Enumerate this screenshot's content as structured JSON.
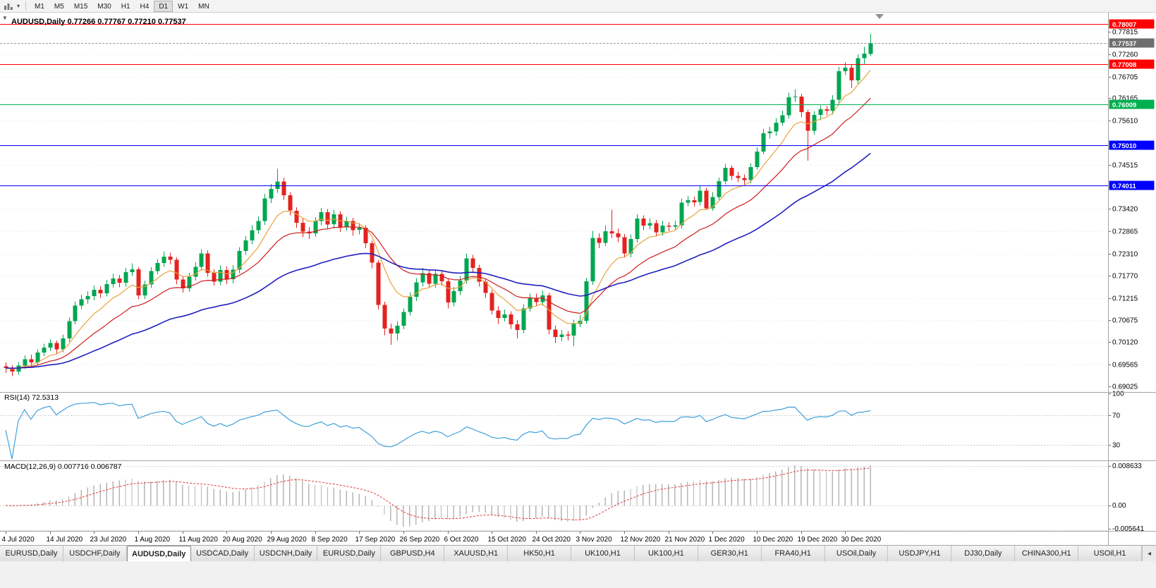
{
  "toolbar": {
    "timeframes": [
      "M1",
      "M5",
      "M15",
      "M30",
      "H1",
      "H4",
      "D1",
      "W1",
      "MN"
    ],
    "active_timeframe": "D1",
    "caret_icon": "▾"
  },
  "chart": {
    "title_symbol": "AUDUSD,Daily",
    "title_ohlc": "0.77266 0.77767 0.77210 0.77537",
    "dropdown_icon": "▼",
    "price_ticks": [
      "0.77815",
      "0.77260",
      "0.76705",
      "0.76165",
      "0.75610",
      "0.74515",
      "0.73420",
      "0.72865",
      "0.72310",
      "0.71770",
      "0.71215",
      "0.70675",
      "0.70120",
      "0.69565",
      "0.69025"
    ],
    "levels": [
      {
        "label": "0.78007",
        "value": 0.78007,
        "color": "#ff0000"
      },
      {
        "label": "0.77008",
        "value": 0.77008,
        "color": "#ff0000"
      },
      {
        "label": "0.76009",
        "value": 0.76009,
        "color": "#00b050"
      },
      {
        "label": "0.75010",
        "value": 0.7501,
        "color": "#0000ff"
      },
      {
        "label": "0.74011",
        "value": 0.74011,
        "color": "#0000ff"
      }
    ],
    "bid": {
      "label": "0.77537",
      "value": 0.77537,
      "color": "#6e6e6e"
    },
    "candle_colors": {
      "bull": "#00a651",
      "bear": "#e3231f"
    }
  },
  "rsi_panel": {
    "name": "RSI(14)",
    "value": "72.5313",
    "ticks": [
      "100",
      "70",
      "30"
    ]
  },
  "macd_panel": {
    "name": "MACD(12,26,9)",
    "value": "0.007716 0.006787",
    "ticks": [
      "0.008633",
      "0.00",
      "-0.005641"
    ]
  },
  "chart_data": {
    "type": "candlestick",
    "title": "AUDUSD,Daily",
    "y_range": [
      0.68885,
      0.78287
    ],
    "x_label_every": 7,
    "x_labels": [
      "4 Jul 2020",
      "14 Jul 2020",
      "23 Jul 2020",
      "1 Aug 2020",
      "11 Aug 2020",
      "20 Aug 2020",
      "29 Aug 2020",
      "8 Sep 2020",
      "17 Sep 2020",
      "26 Sep 2020",
      "6 Oct 2020",
      "15 Oct 2020",
      "24 Oct 2020",
      "3 Nov 2020",
      "12 Nov 2020",
      "21 Nov 2020",
      "1 Dec 2020",
      "10 Dec 2020",
      "19 Dec 2020",
      "30 Dec 2020"
    ],
    "overlays": [
      {
        "name": "ma-fast",
        "type": "ema",
        "period": 8,
        "color": "#e8a33d"
      },
      {
        "name": "ma-medium",
        "type": "ema",
        "period": 18,
        "color": "#cc1d1d"
      },
      {
        "name": "ma-slow",
        "type": "ema",
        "period": 45,
        "color": "#1f1fc0"
      }
    ],
    "indicators": [
      {
        "name": "RSI",
        "params": [
          14
        ],
        "current": 72.5313,
        "levels": [
          70,
          30
        ],
        "range_ticks": [
          100,
          70,
          30
        ],
        "color": "#3fa0da"
      },
      {
        "name": "MACD",
        "params": [
          12,
          26,
          9
        ],
        "current": [
          0.007716,
          0.006787
        ],
        "ticks": [
          0.008633,
          0,
          -0.005641
        ],
        "histogram_color": "#b6b6b6",
        "signal_color": "#e03c3c"
      }
    ],
    "candles": [
      [
        0.6952,
        0.6962,
        0.6936,
        0.6948
      ],
      [
        0.6948,
        0.6955,
        0.6928,
        0.6939
      ],
      [
        0.6939,
        0.6963,
        0.6931,
        0.6954
      ],
      [
        0.6954,
        0.6979,
        0.6946,
        0.697
      ],
      [
        0.697,
        0.6981,
        0.6952,
        0.6962
      ],
      [
        0.6962,
        0.6994,
        0.6955,
        0.6986
      ],
      [
        0.6986,
        0.7008,
        0.6978,
        0.6999
      ],
      [
        0.6999,
        0.7019,
        0.699,
        0.701
      ],
      [
        0.701,
        0.7016,
        0.6982,
        0.6994
      ],
      [
        0.6994,
        0.7031,
        0.6987,
        0.7021
      ],
      [
        0.7021,
        0.7074,
        0.7013,
        0.7064
      ],
      [
        0.7064,
        0.7113,
        0.7056,
        0.7103
      ],
      [
        0.7103,
        0.713,
        0.7094,
        0.7118
      ],
      [
        0.7118,
        0.7138,
        0.7107,
        0.7126
      ],
      [
        0.7126,
        0.7152,
        0.7116,
        0.7142
      ],
      [
        0.7142,
        0.7151,
        0.7122,
        0.7133
      ],
      [
        0.7133,
        0.7166,
        0.7125,
        0.7156
      ],
      [
        0.7156,
        0.7182,
        0.7147,
        0.717
      ],
      [
        0.717,
        0.7179,
        0.7148,
        0.7159
      ],
      [
        0.7159,
        0.7196,
        0.715,
        0.7186
      ],
      [
        0.7186,
        0.7207,
        0.7176,
        0.7193
      ],
      [
        0.7193,
        0.7198,
        0.7118,
        0.7128
      ],
      [
        0.7128,
        0.7165,
        0.7119,
        0.7155
      ],
      [
        0.7155,
        0.7198,
        0.7146,
        0.7188
      ],
      [
        0.7188,
        0.7218,
        0.718,
        0.7208
      ],
      [
        0.7208,
        0.7237,
        0.7199,
        0.7224
      ],
      [
        0.7224,
        0.7234,
        0.7205,
        0.7216
      ],
      [
        0.7216,
        0.7222,
        0.7156,
        0.7167
      ],
      [
        0.7167,
        0.7176,
        0.7135,
        0.7145
      ],
      [
        0.7145,
        0.7184,
        0.7137,
        0.7174
      ],
      [
        0.7174,
        0.721,
        0.7165,
        0.7199
      ],
      [
        0.7199,
        0.7242,
        0.719,
        0.7232
      ],
      [
        0.7232,
        0.724,
        0.7174,
        0.7184
      ],
      [
        0.7184,
        0.7193,
        0.7152,
        0.7162
      ],
      [
        0.7162,
        0.7202,
        0.7153,
        0.7191
      ],
      [
        0.7191,
        0.72,
        0.7156,
        0.7168
      ],
      [
        0.7168,
        0.7203,
        0.7158,
        0.7192
      ],
      [
        0.7192,
        0.7248,
        0.7183,
        0.7238
      ],
      [
        0.7238,
        0.7275,
        0.7228,
        0.7264
      ],
      [
        0.7264,
        0.7302,
        0.7255,
        0.729
      ],
      [
        0.729,
        0.7324,
        0.7281,
        0.7312
      ],
      [
        0.7312,
        0.738,
        0.7303,
        0.7368
      ],
      [
        0.7368,
        0.7404,
        0.7357,
        0.7392
      ],
      [
        0.7392,
        0.7442,
        0.7382,
        0.741
      ],
      [
        0.741,
        0.742,
        0.7365,
        0.7376
      ],
      [
        0.7376,
        0.7384,
        0.7326,
        0.7338
      ],
      [
        0.7338,
        0.7346,
        0.7296,
        0.7308
      ],
      [
        0.7308,
        0.7318,
        0.7272,
        0.7286
      ],
      [
        0.7286,
        0.7297,
        0.7268,
        0.7282
      ],
      [
        0.7282,
        0.7322,
        0.7273,
        0.7312
      ],
      [
        0.7312,
        0.7345,
        0.7302,
        0.7334
      ],
      [
        0.7334,
        0.7342,
        0.7292,
        0.7304
      ],
      [
        0.7304,
        0.734,
        0.7294,
        0.7329
      ],
      [
        0.7329,
        0.7337,
        0.7285,
        0.7297
      ],
      [
        0.7297,
        0.7323,
        0.7288,
        0.7312
      ],
      [
        0.7312,
        0.732,
        0.7276,
        0.729
      ],
      [
        0.729,
        0.7307,
        0.7279,
        0.7296
      ],
      [
        0.7296,
        0.7302,
        0.7245,
        0.7257
      ],
      [
        0.7257,
        0.7263,
        0.7195,
        0.7209
      ],
      [
        0.7209,
        0.7215,
        0.7093,
        0.7104
      ],
      [
        0.7104,
        0.7112,
        0.7029,
        0.7046
      ],
      [
        0.7046,
        0.7058,
        0.7006,
        0.7034
      ],
      [
        0.7034,
        0.7064,
        0.7016,
        0.7053
      ],
      [
        0.7053,
        0.7096,
        0.7044,
        0.7087
      ],
      [
        0.7087,
        0.7136,
        0.7078,
        0.7124
      ],
      [
        0.7124,
        0.7171,
        0.7114,
        0.716
      ],
      [
        0.716,
        0.7196,
        0.715,
        0.7183
      ],
      [
        0.7183,
        0.7191,
        0.7146,
        0.7157
      ],
      [
        0.7157,
        0.7192,
        0.7147,
        0.7181
      ],
      [
        0.7181,
        0.719,
        0.7152,
        0.7163
      ],
      [
        0.7163,
        0.7169,
        0.7096,
        0.711
      ],
      [
        0.711,
        0.7149,
        0.7101,
        0.7138
      ],
      [
        0.7138,
        0.7176,
        0.7129,
        0.7165
      ],
      [
        0.7165,
        0.7232,
        0.7157,
        0.722
      ],
      [
        0.722,
        0.7228,
        0.7184,
        0.7196
      ],
      [
        0.7196,
        0.7204,
        0.715,
        0.7162
      ],
      [
        0.7162,
        0.717,
        0.7122,
        0.7134
      ],
      [
        0.7134,
        0.7141,
        0.7081,
        0.709
      ],
      [
        0.709,
        0.7101,
        0.7057,
        0.7072
      ],
      [
        0.7072,
        0.7093,
        0.7063,
        0.7081
      ],
      [
        0.7081,
        0.7089,
        0.7045,
        0.7056
      ],
      [
        0.7056,
        0.7067,
        0.7021,
        0.7042
      ],
      [
        0.7042,
        0.7106,
        0.7034,
        0.7096
      ],
      [
        0.7096,
        0.7132,
        0.7088,
        0.7122
      ],
      [
        0.7122,
        0.7132,
        0.7101,
        0.7111
      ],
      [
        0.7111,
        0.714,
        0.7103,
        0.7128
      ],
      [
        0.7128,
        0.7134,
        0.7032,
        0.7043
      ],
      [
        0.7043,
        0.7054,
        0.701,
        0.7025
      ],
      [
        0.7025,
        0.7042,
        0.7014,
        0.7031
      ],
      [
        0.7031,
        0.704,
        0.7016,
        0.7028
      ],
      [
        0.7028,
        0.7068,
        0.7002,
        0.7057
      ],
      [
        0.7057,
        0.7079,
        0.7049,
        0.7065
      ],
      [
        0.7065,
        0.7172,
        0.7058,
        0.7163
      ],
      [
        0.7163,
        0.7288,
        0.7154,
        0.727
      ],
      [
        0.727,
        0.7282,
        0.7245,
        0.7258
      ],
      [
        0.7258,
        0.7302,
        0.725,
        0.7287
      ],
      [
        0.7287,
        0.734,
        0.727,
        0.7282
      ],
      [
        0.7282,
        0.7294,
        0.726,
        0.7272
      ],
      [
        0.7272,
        0.728,
        0.7221,
        0.7232
      ],
      [
        0.7232,
        0.7279,
        0.7222,
        0.7268
      ],
      [
        0.7268,
        0.7329,
        0.7259,
        0.7318
      ],
      [
        0.7318,
        0.7326,
        0.729,
        0.7301
      ],
      [
        0.7301,
        0.7319,
        0.7292,
        0.7307
      ],
      [
        0.7307,
        0.7315,
        0.7274,
        0.7284
      ],
      [
        0.7284,
        0.7312,
        0.7276,
        0.7301
      ],
      [
        0.7301,
        0.731,
        0.7287,
        0.7298
      ],
      [
        0.7298,
        0.7313,
        0.7289,
        0.7302
      ],
      [
        0.7302,
        0.7368,
        0.7293,
        0.7358
      ],
      [
        0.7358,
        0.7374,
        0.7349,
        0.7364
      ],
      [
        0.7364,
        0.7373,
        0.7348,
        0.7359
      ],
      [
        0.7359,
        0.7399,
        0.7351,
        0.7387
      ],
      [
        0.7387,
        0.7394,
        0.7339,
        0.7344
      ],
      [
        0.7344,
        0.7384,
        0.7338,
        0.7372
      ],
      [
        0.7372,
        0.742,
        0.7365,
        0.7411
      ],
      [
        0.7411,
        0.7454,
        0.7403,
        0.7444
      ],
      [
        0.7444,
        0.745,
        0.7414,
        0.7424
      ],
      [
        0.7424,
        0.7435,
        0.7408,
        0.7419
      ],
      [
        0.7419,
        0.7428,
        0.7402,
        0.7414
      ],
      [
        0.7414,
        0.7456,
        0.7406,
        0.7446
      ],
      [
        0.7446,
        0.7495,
        0.744,
        0.7484
      ],
      [
        0.7484,
        0.754,
        0.7477,
        0.753
      ],
      [
        0.753,
        0.7546,
        0.7517,
        0.7534
      ],
      [
        0.7534,
        0.7567,
        0.7524,
        0.7556
      ],
      [
        0.7556,
        0.7586,
        0.7548,
        0.7574
      ],
      [
        0.7574,
        0.763,
        0.7566,
        0.7619
      ],
      [
        0.7619,
        0.7639,
        0.7608,
        0.7621
      ],
      [
        0.7621,
        0.7628,
        0.757,
        0.7582
      ],
      [
        0.7582,
        0.7588,
        0.7462,
        0.7536
      ],
      [
        0.7536,
        0.7584,
        0.7526,
        0.7575
      ],
      [
        0.7575,
        0.7599,
        0.7562,
        0.7589
      ],
      [
        0.7589,
        0.7597,
        0.7574,
        0.7586
      ],
      [
        0.7586,
        0.7624,
        0.7576,
        0.7613
      ],
      [
        0.7613,
        0.7694,
        0.7605,
        0.7684
      ],
      [
        0.7684,
        0.7706,
        0.7674,
        0.7692
      ],
      [
        0.7692,
        0.77,
        0.7642,
        0.7661
      ],
      [
        0.7661,
        0.7726,
        0.7652,
        0.7716
      ],
      [
        0.7716,
        0.7744,
        0.7702,
        0.7727
      ],
      [
        0.77266,
        0.77767,
        0.7721,
        0.77537
      ]
    ]
  },
  "tabs": {
    "scroll_icon": "◂",
    "items": [
      {
        "label": "EURUSD,Daily",
        "active": false
      },
      {
        "label": "USDCHF,Daily",
        "active": false
      },
      {
        "label": "AUDUSD,Daily",
        "active": true
      },
      {
        "label": "USDCAD,Daily",
        "active": false
      },
      {
        "label": "USDCNH,Daily",
        "active": false
      },
      {
        "label": "EURUSD,Daily",
        "active": false
      },
      {
        "label": "GBPUSD,H4",
        "active": false
      },
      {
        "label": "XAUUSD,H1",
        "active": false
      },
      {
        "label": "HK50,H1",
        "active": false
      },
      {
        "label": "UK100,H1",
        "active": false
      },
      {
        "label": "UK100,H1",
        "active": false
      },
      {
        "label": "GER30,H1",
        "active": false
      },
      {
        "label": "FRA40,H1",
        "active": false
      },
      {
        "label": "USOil,Daily",
        "active": false
      },
      {
        "label": "USDJPY,H1",
        "active": false
      },
      {
        "label": "DJ30,Daily",
        "active": false
      },
      {
        "label": "CHINA300,H1",
        "active": false
      },
      {
        "label": "USOil,H1",
        "active": false
      }
    ]
  }
}
